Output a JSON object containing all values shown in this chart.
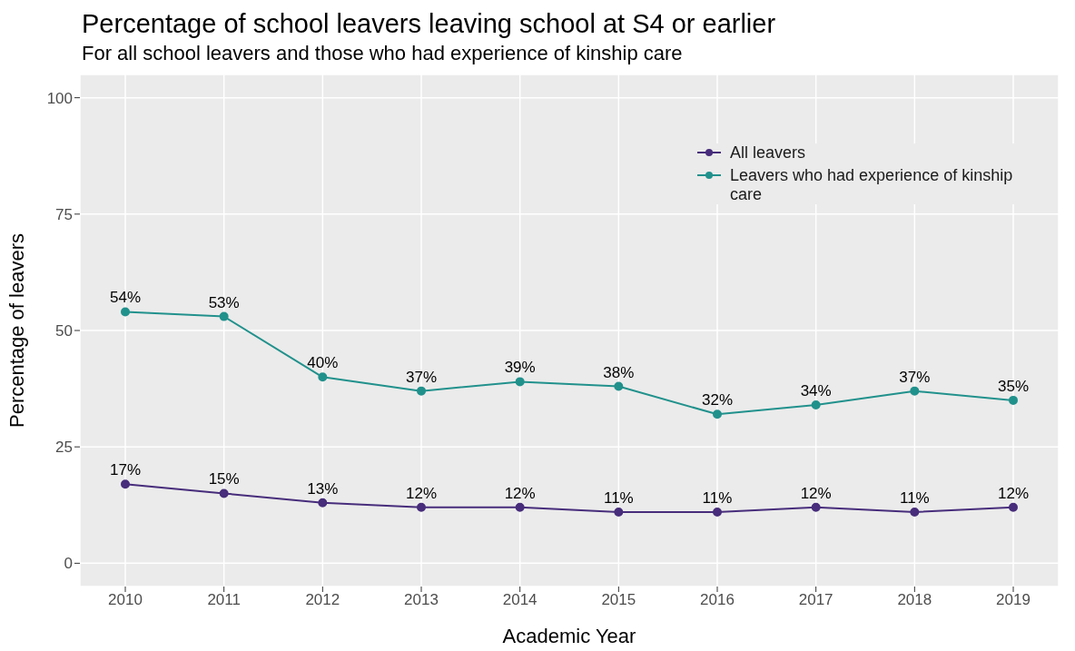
{
  "chart_data": {
    "type": "line",
    "title": "Percentage of school leavers leaving school at S4 or earlier",
    "subtitle": "For all school leavers and those who had experience of kinship care",
    "xlabel": "Academic Year",
    "ylabel": "Percentage of leavers",
    "categories": [
      "2010",
      "2011",
      "2012",
      "2013",
      "2014",
      "2015",
      "2016",
      "2017",
      "2018",
      "2019"
    ],
    "series": [
      {
        "name": "All leavers",
        "color": "#472d7b",
        "values": [
          17,
          15,
          13,
          12,
          12,
          11,
          11,
          12,
          11,
          12
        ],
        "value_labels": [
          "17%",
          "15%",
          "13%",
          "12%",
          "12%",
          "11%",
          "11%",
          "12%",
          "11%",
          "12%"
        ]
      },
      {
        "name": "Leavers who had experience of kinship care",
        "color": "#21918c",
        "values": [
          54,
          53,
          40,
          37,
          39,
          38,
          32,
          34,
          37,
          35
        ],
        "value_labels": [
          "54%",
          "53%",
          "40%",
          "37%",
          "39%",
          "38%",
          "32%",
          "34%",
          "37%",
          "35%"
        ]
      }
    ],
    "ylim": [
      -5,
      105
    ],
    "yticks": [
      0,
      25,
      50,
      75,
      100
    ],
    "grid": true,
    "legend": "top right",
    "marker": "circle",
    "line_style": "solid"
  }
}
